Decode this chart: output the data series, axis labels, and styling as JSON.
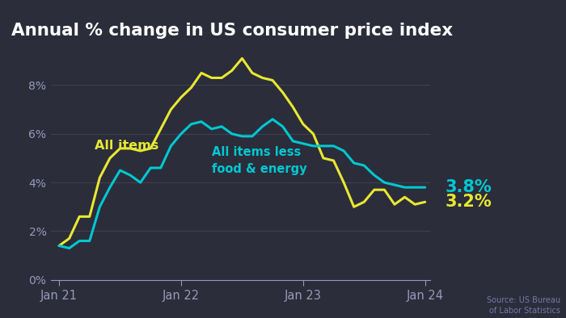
{
  "title": "Annual % change in US consumer price index",
  "background_color": "#2b2d3a",
  "title_color": "#ffffff",
  "source_text": "Source: US Bureau\nof Labor Statistics",
  "grid_color": "#3e4050",
  "all_items_color": "#e8e832",
  "core_color": "#00c8d2",
  "all_items_label": "All items",
  "core_label": "All items less\nfood & energy",
  "end_label_all": "3.2%",
  "end_label_core": "3.8%",
  "ylim": [
    0,
    9.8
  ],
  "yticks": [
    0,
    2,
    4,
    6,
    8
  ],
  "xtick_labels": [
    "Jan 21",
    "Jan 22",
    "Jan 23",
    "Jan 24"
  ],
  "all_items_data": [
    1.4,
    1.7,
    2.6,
    2.6,
    4.2,
    5.0,
    5.4,
    5.4,
    5.3,
    5.4,
    6.2,
    7.0,
    7.5,
    7.9,
    8.5,
    8.3,
    8.3,
    8.6,
    9.1,
    8.5,
    8.3,
    8.2,
    7.7,
    7.1,
    6.4,
    6.0,
    5.0,
    4.9,
    4.0,
    3.0,
    3.2,
    3.7,
    3.7,
    3.1,
    3.4,
    3.1,
    3.2
  ],
  "core_data": [
    1.4,
    1.3,
    1.6,
    1.6,
    3.0,
    3.8,
    4.5,
    4.3,
    4.0,
    4.6,
    4.6,
    5.5,
    6.0,
    6.4,
    6.5,
    6.2,
    6.3,
    6.0,
    5.9,
    5.9,
    6.3,
    6.6,
    6.3,
    5.7,
    5.6,
    5.5,
    5.5,
    5.5,
    5.3,
    4.8,
    4.7,
    4.3,
    4.0,
    3.9,
    3.8,
    3.8,
    3.8
  ]
}
